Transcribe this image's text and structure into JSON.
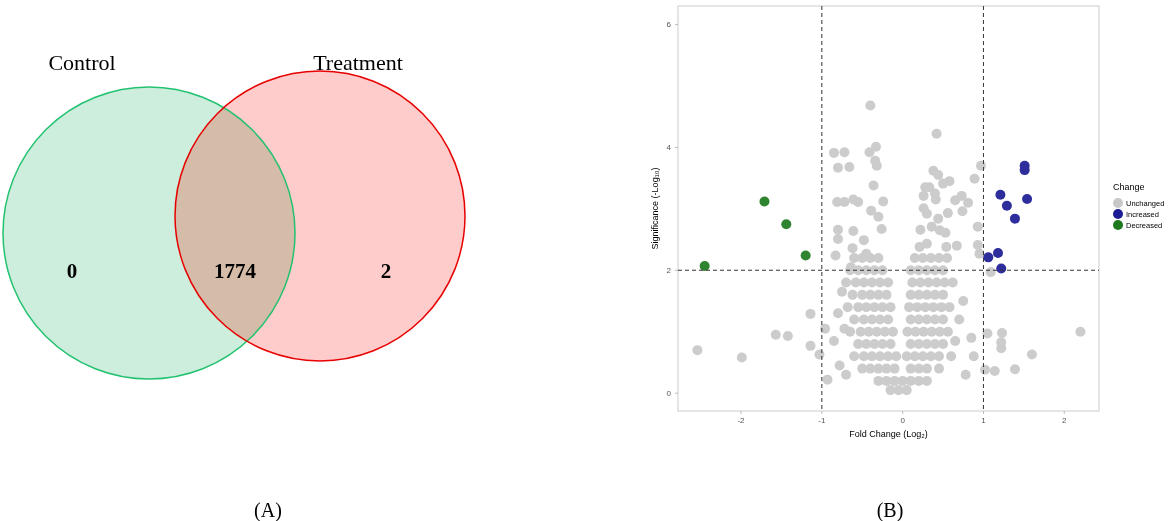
{
  "chart_data": [
    {
      "type": "other",
      "annotations": [
        "Control",
        "Treatment",
        "(A)"
      ],
      "data_labels": true,
      "categories": [
        null,
        null,
        null
      ],
      "values": [
        0,
        1774,
        2
      ],
      "colors": [
        "#cdeedd",
        "#d4bca9",
        "#ffcccc"
      ]
    },
    {
      "type": "scatter",
      "xlabel": "Fold Change (Log₂)",
      "ylabel": "Significance (-Log₁₀)",
      "legend_title": "Change",
      "legend": "right",
      "marker": "circle",
      "annotations": [
        "(B)"
      ],
      "xlim": [
        -2.78,
        2.43
      ],
      "xticks": [
        -2,
        -1,
        0,
        1,
        2
      ],
      "ylim": [
        -0.29,
        6.3
      ],
      "yticks": [
        0,
        2,
        4,
        6
      ],
      "ref_lines": [
        {
          "axis": "x",
          "value": -1,
          "line_style": "dashed"
        },
        {
          "axis": "x",
          "value": 1,
          "line_style": "dashed"
        },
        {
          "axis": "y",
          "value": 2,
          "line_style": "dashed"
        }
      ],
      "series": [
        {
          "name": "Unchanged",
          "color": "#c8c8c8",
          "x": [
            -2.54,
            -1.99,
            -1.57,
            -1.42,
            -1.14,
            -1.14,
            -1.03,
            -0.96,
            -0.93,
            2.2,
            1.6,
            1.39,
            1.05,
            1.23,
            1.22,
            1.22,
            1.02,
            1.14,
            1.09,
            0.97,
            0.89,
            0.93,
            0.93,
            0.95,
            -0.4,
            0.42,
            -0.85,
            -0.72,
            -0.41,
            -0.33,
            -0.8,
            -0.66,
            -0.34,
            -0.32,
            -0.36,
            -0.81,
            -0.72,
            -0.61,
            -0.55,
            -0.24,
            -0.39,
            -0.3,
            -0.61,
            -0.8,
            -0.8,
            -0.62,
            -0.48,
            -0.26,
            -0.83,
            -0.64,
            -0.45,
            0.38,
            0.44,
            0.5,
            0.58,
            0.28,
            0.33,
            0.4,
            0.26,
            0.41,
            0.73,
            0.65,
            0.81,
            0.56,
            0.74,
            0.26,
            0.3,
            0.44,
            0.22,
            0.36,
            0.46,
            0.53,
            0.67,
            0.54,
            0.21,
            0.3,
            -0.6,
            -0.5,
            -0.4,
            -0.3,
            -0.65,
            -0.55,
            -0.45,
            -0.35,
            -0.25,
            -0.7,
            -0.58,
            -0.48,
            -0.38,
            -0.28,
            -0.18,
            -0.62,
            -0.5,
            -0.4,
            -0.3,
            -0.2,
            -0.68,
            -0.55,
            -0.45,
            -0.35,
            -0.25,
            -0.15,
            -0.6,
            -0.48,
            -0.38,
            -0.28,
            -0.18,
            -0.65,
            -0.52,
            -0.42,
            -0.32,
            -0.22,
            -0.12,
            -0.55,
            -0.45,
            -0.35,
            -0.25,
            -0.15,
            -0.6,
            -0.48,
            -0.38,
            -0.28,
            -0.18,
            -0.08,
            -0.5,
            -0.4,
            -0.3,
            -0.2,
            -0.1,
            -0.3,
            -0.2,
            -0.1,
            0,
            -0.15,
            -0.05,
            0.05,
            0.15,
            0.25,
            0.35,
            0.45,
            0.55,
            0.1,
            0.2,
            0.3,
            0.4,
            0.5,
            0.12,
            0.22,
            0.32,
            0.42,
            0.52,
            0.62,
            0.1,
            0.2,
            0.3,
            0.4,
            0.5,
            0.08,
            0.18,
            0.28,
            0.38,
            0.48,
            0.58,
            0.1,
            0.2,
            0.3,
            0.4,
            0.5,
            0.06,
            0.16,
            0.26,
            0.36,
            0.46,
            0.56,
            0.1,
            0.2,
            0.3,
            0.4,
            0.5,
            0.05,
            0.15,
            0.25,
            0.35,
            0.45,
            0.6,
            0.1,
            0.2,
            0.3,
            0.45,
            0.1,
            0.2,
            0.3,
            -0.75,
            -0.8,
            -0.85,
            -0.78,
            -0.7,
            0.75,
            0.85,
            0.88,
            0.78,
            0.7,
            -0.72,
            0.65
          ],
          "values": [
            0.7,
            0.58,
            0.95,
            0.93,
            1.29,
            0.77,
            0.63,
            1.05,
            0.22,
            1.0,
            0.63,
            0.39,
            0.97,
            0.98,
            0.83,
            0.73,
            0.38,
            0.36,
            1.97,
            3.7,
            3.49,
            2.71,
            2.41,
            2.27,
            4.68,
            4.22,
            3.91,
            3.92,
            3.92,
            4.01,
            3.67,
            3.68,
            3.78,
            3.7,
            3.38,
            3.11,
            3.11,
            3.15,
            3.11,
            3.12,
            2.97,
            2.87,
            2.64,
            2.66,
            2.51,
            2.36,
            2.49,
            2.67,
            2.24,
            2.05,
            2.27,
            3.62,
            3.55,
            3.41,
            3.45,
            3.35,
            3.35,
            3.25,
            3.21,
            3.15,
            3.21,
            3.14,
            3.1,
            2.93,
            2.96,
            3.01,
            2.92,
            2.84,
            2.66,
            2.71,
            2.65,
            2.61,
            2.4,
            2.38,
            2.38,
            2.43,
            2.2,
            2.2,
            2.2,
            2.2,
            2.0,
            2.0,
            2.0,
            2.0,
            2.0,
            1.8,
            1.8,
            1.8,
            1.8,
            1.8,
            1.8,
            1.6,
            1.6,
            1.6,
            1.6,
            1.6,
            1.4,
            1.4,
            1.4,
            1.4,
            1.4,
            1.4,
            1.2,
            1.2,
            1.2,
            1.2,
            1.2,
            1.0,
            1.0,
            1.0,
            1.0,
            1.0,
            1.0,
            0.8,
            0.8,
            0.8,
            0.8,
            0.8,
            0.6,
            0.6,
            0.6,
            0.6,
            0.6,
            0.6,
            0.4,
            0.4,
            0.4,
            0.4,
            0.4,
            0.2,
            0.2,
            0.2,
            0.2,
            0.05,
            0.05,
            0.05,
            2.2,
            2.2,
            2.2,
            2.2,
            2.2,
            2.0,
            2.0,
            2.0,
            2.0,
            2.0,
            1.8,
            1.8,
            1.8,
            1.8,
            1.8,
            1.8,
            1.6,
            1.6,
            1.6,
            1.6,
            1.6,
            1.4,
            1.4,
            1.4,
            1.4,
            1.4,
            1.4,
            1.2,
            1.2,
            1.2,
            1.2,
            1.2,
            1.0,
            1.0,
            1.0,
            1.0,
            1.0,
            1.0,
            0.8,
            0.8,
            0.8,
            0.8,
            0.8,
            0.6,
            0.6,
            0.6,
            0.6,
            0.6,
            0.6,
            0.4,
            0.4,
            0.4,
            0.4,
            0.2,
            0.2,
            0.2,
            1.65,
            1.3,
            0.85,
            0.45,
            0.3,
            1.5,
            0.9,
            0.6,
            0.3,
            1.2,
            1.05,
            0.85
          ]
        },
        {
          "name": "Increased",
          "color": "#1c1c94",
          "x": [
            1.06,
            1.18,
            1.22,
            1.21,
            1.29,
            1.39,
            1.51,
            1.51,
            1.54
          ],
          "values": [
            2.21,
            2.28,
            2.03,
            3.23,
            3.05,
            2.84,
            3.7,
            3.63,
            3.16
          ]
        },
        {
          "name": "Decreased",
          "color": "#1e7a1e",
          "x": [
            -2.45,
            -1.71,
            -1.44,
            -1.2
          ],
          "values": [
            2.07,
            3.12,
            2.75,
            2.24
          ]
        }
      ]
    }
  ]
}
